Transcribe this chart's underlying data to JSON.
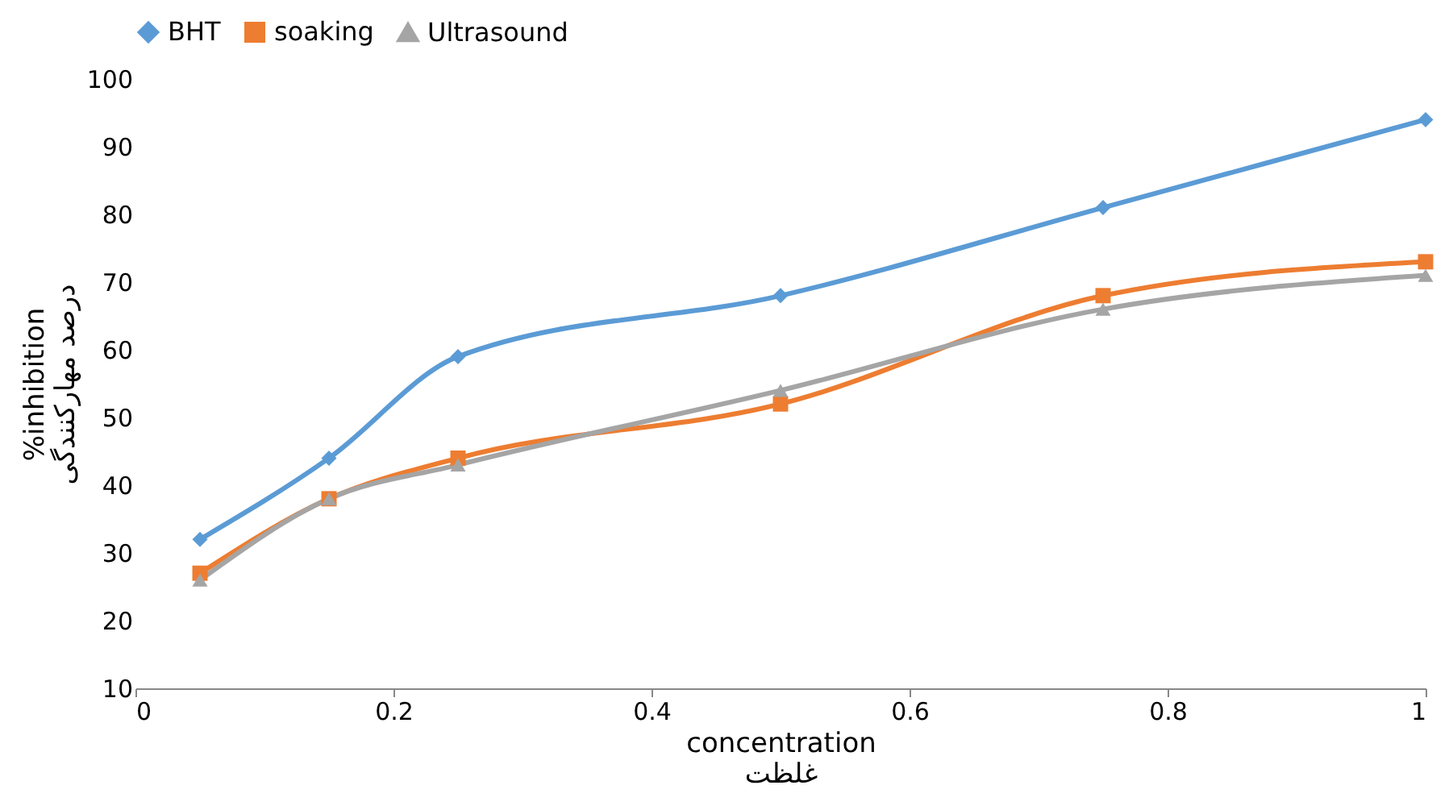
{
  "chart_data": {
    "type": "line",
    "xlabel": "concentration\nغلظت",
    "ylabel": "%inhibition\nدرصد مهارکنندگی",
    "x": [
      0.05,
      0.15,
      0.25,
      0.5,
      0.75,
      1
    ],
    "xlim": [
      0,
      1
    ],
    "xticks": [
      0,
      0.2,
      0.4,
      0.6,
      0.8,
      1
    ],
    "ylim": [
      10,
      100
    ],
    "yticks": [
      10,
      20,
      30,
      40,
      50,
      60,
      70,
      80,
      90,
      100
    ],
    "grid": false,
    "legend": "top",
    "series": [
      {
        "name": "BHT",
        "color": "#5b9bd5",
        "marker": "diamond",
        "values": [
          32,
          44,
          59,
          68,
          81,
          94
        ]
      },
      {
        "name": "soaking",
        "color": "#ed7d31",
        "marker": "square",
        "values": [
          27,
          38,
          44,
          52,
          68,
          73
        ]
      },
      {
        "name": "Ultrasound",
        "color": "#a5a5a5",
        "marker": "triangle",
        "values": [
          26,
          38,
          43,
          54,
          66,
          71
        ]
      }
    ]
  }
}
